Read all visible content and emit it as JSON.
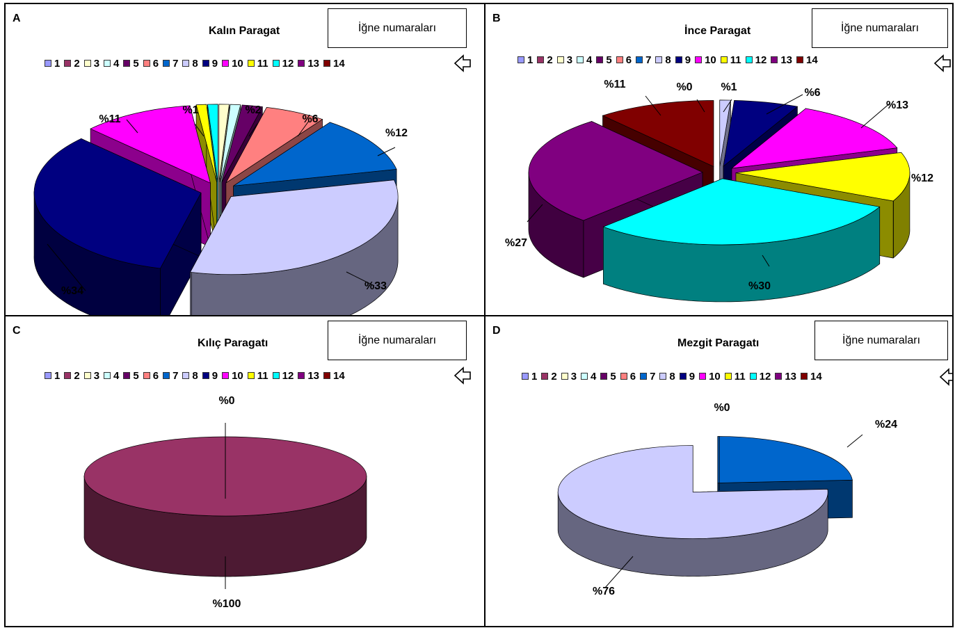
{
  "chart_data": [
    {
      "type": "pie",
      "panel_letter": "A",
      "title": "Kalın Paragat",
      "legend_title": "İğne numaraları",
      "categories": [
        "1",
        "2",
        "3",
        "4",
        "5",
        "6",
        "7",
        "8",
        "9",
        "10",
        "11",
        "12",
        "13",
        "14"
      ],
      "values": [
        0,
        0,
        1,
        1,
        2,
        6,
        12,
        33,
        34,
        11,
        1,
        1,
        0,
        0
      ],
      "labels": [
        {
          "text": "%34"
        },
        {
          "text": "%33"
        },
        {
          "text": "%12"
        },
        {
          "text": "%11"
        },
        {
          "text": "%6"
        },
        {
          "text": "%2"
        },
        {
          "text": "%1"
        }
      ]
    },
    {
      "type": "pie",
      "panel_letter": "B",
      "title": "İnce Paragat",
      "legend_title": "İğne numaraları",
      "categories": [
        "1",
        "2",
        "3",
        "4",
        "5",
        "6",
        "7",
        "8",
        "9",
        "10",
        "11",
        "12",
        "13",
        "14"
      ],
      "values": [
        0,
        0,
        0,
        0,
        0,
        0,
        0,
        1,
        6,
        13,
        12,
        30,
        27,
        11
      ],
      "labels": [
        {
          "text": "%11"
        },
        {
          "text": "%0"
        },
        {
          "text": "%1"
        },
        {
          "text": "%6"
        },
        {
          "text": "%13"
        },
        {
          "text": "%12"
        },
        {
          "text": "%27"
        },
        {
          "text": "%30"
        }
      ]
    },
    {
      "type": "pie",
      "panel_letter": "C",
      "title": "Kılıç Paragatı",
      "legend_title": "İğne numaraları",
      "categories": [
        "1",
        "2",
        "3",
        "4",
        "5",
        "6",
        "7",
        "8",
        "9",
        "10",
        "11",
        "12",
        "13",
        "14"
      ],
      "values": [
        0,
        100,
        0,
        0,
        0,
        0,
        0,
        0,
        0,
        0,
        0,
        0,
        0,
        0
      ],
      "labels": [
        {
          "text": "%0"
        },
        {
          "text": "%100"
        }
      ]
    },
    {
      "type": "pie",
      "panel_letter": "D",
      "title": "Mezgit Paragatı",
      "legend_title": "İğne numaraları",
      "categories": [
        "1",
        "2",
        "3",
        "4",
        "5",
        "6",
        "7",
        "8",
        "9",
        "10",
        "11",
        "12",
        "13",
        "14"
      ],
      "values": [
        0,
        0,
        0,
        0,
        0,
        0,
        24,
        76,
        0,
        0,
        0,
        0,
        0,
        0
      ],
      "labels": [
        {
          "text": "%0"
        },
        {
          "text": "%24"
        },
        {
          "text": "%76"
        }
      ]
    }
  ],
  "legend_colors": [
    "#9999ff",
    "#993366",
    "#ffffcc",
    "#ccffff",
    "#660066",
    "#ff8080",
    "#0066cc",
    "#ccccff",
    "#000080",
    "#ff00ff",
    "#ffff00",
    "#00ffff",
    "#800080",
    "#800000"
  ],
  "icon": "return-arrow-icon"
}
